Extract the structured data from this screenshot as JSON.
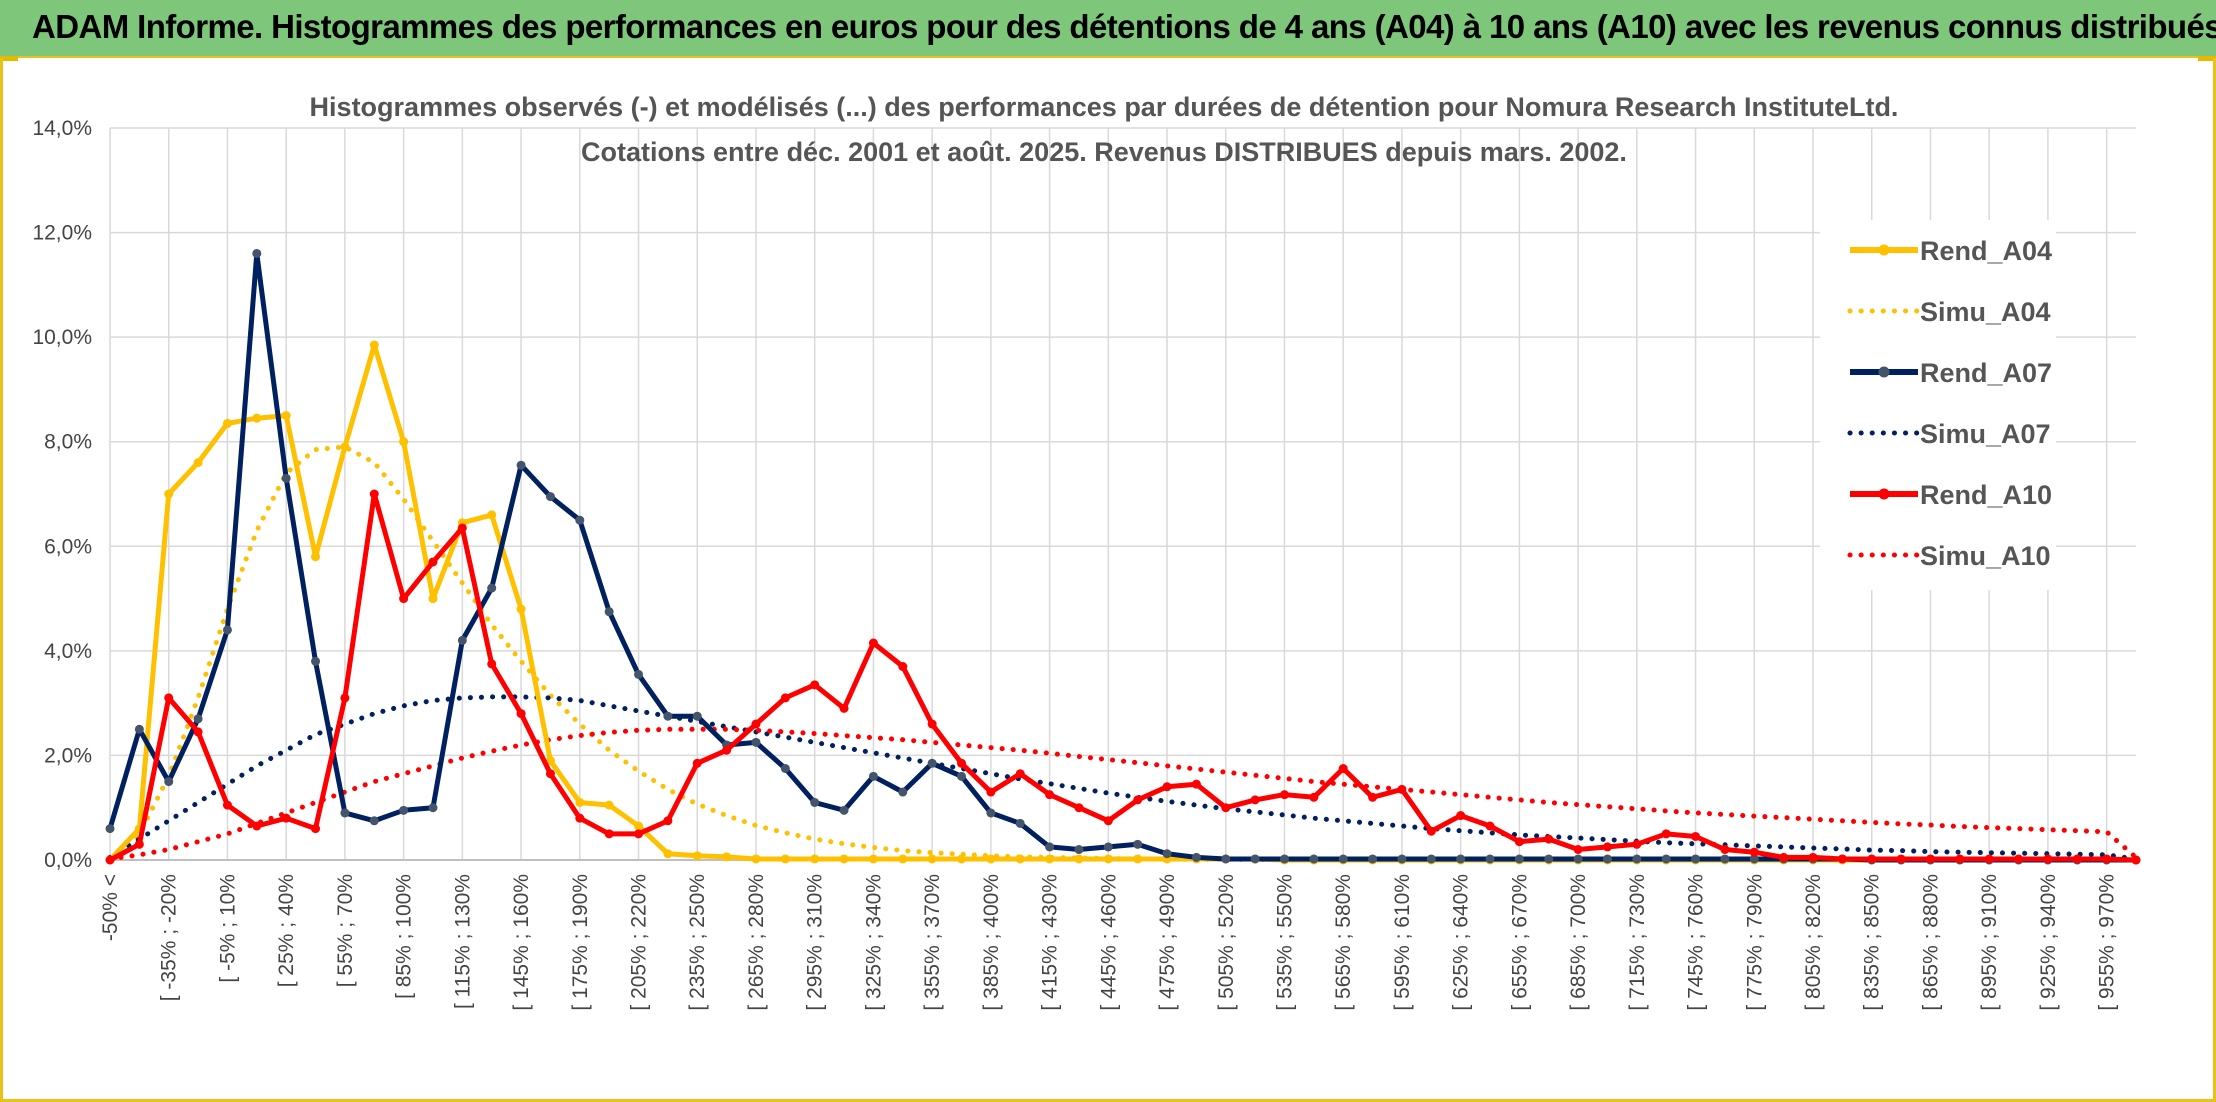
{
  "banner_title": "ADAM Informe. Histogrammes des performances en euros pour des détentions de 4 ans (A04) à 10 ans (A10) avec les revenus connus distribués",
  "chart_data": {
    "type": "line",
    "title": "Histogrammes observés (-) et modélisés (...) des performances par durées de détention pour Nomura Research InstituteLtd.",
    "subtitle": "Cotations entre déc. 2001 et août. 2025. Revenus DISTRIBUES depuis mars. 2002.",
    "xlabel": "",
    "ylabel": "",
    "ylim": [
      0,
      14
    ],
    "yticks": [
      "0,0%",
      "2,0%",
      "4,0%",
      "6,0%",
      "8,0%",
      "10,0%",
      "12,0%",
      "14,0%"
    ],
    "grid": true,
    "legend_position": "right",
    "x_labels_shown": [
      "-50% <",
      "[ -35% ; -20%",
      "[ -5% ; 10%",
      "[ 25% ; 40%",
      "[ 55% ; 70%",
      "[ 85% ; 100%",
      "[ 115% ; 130%",
      "[ 145% ; 160%",
      "[ 175% ; 190%",
      "[ 205% ; 220%",
      "[ 235% ; 250%",
      "[ 265% ; 280%",
      "[ 295% ; 310%",
      "[ 325% ; 340%",
      "[ 355% ; 370%",
      "[ 385% ; 400%",
      "[ 415% ; 430%",
      "[ 445% ; 460%",
      "[ 475% ; 490%",
      "[ 505% ; 520%",
      "[ 535% ; 550%",
      "[ 565% ; 580%",
      "[ 595% ; 610%",
      "[ 625% ; 640%",
      "[ 655% ; 670%",
      "[ 685% ; 700%",
      "[ 715% ; 730%",
      "[ 745% ; 760%",
      "[ 775% ; 790%",
      "[ 805% ; 820%",
      "[ 835% ; 850%",
      "[ 865% ; 880%",
      "[ 895% ; 910%",
      "[ 925% ; 940%",
      "[ 955% ; 970%"
    ],
    "n_points": 70,
    "series": [
      {
        "name": "Rend_A04",
        "style": "solid",
        "color": "#ffc000",
        "values": [
          0,
          0.6,
          7.0,
          7.6,
          8.35,
          8.45,
          8.5,
          5.8,
          7.9,
          9.85,
          8.0,
          5.0,
          6.45,
          6.6,
          4.8,
          1.9,
          1.1,
          1.05,
          0.65,
          0.12,
          0.08,
          0.06,
          0.02,
          0.02,
          0.02,
          0.02,
          0.02,
          0.02,
          0.02,
          0.02,
          0.02,
          0.02,
          0.02,
          0.02,
          0.02,
          0.02,
          0.02,
          0.02,
          0.02,
          0.02,
          0,
          0,
          0,
          0,
          0,
          0,
          0,
          0,
          0,
          0,
          0,
          0,
          0,
          0,
          0,
          0,
          0,
          0,
          0,
          0,
          0,
          0,
          0,
          0,
          0,
          0,
          0,
          0,
          0,
          0
        ]
      },
      {
        "name": "Simu_A04",
        "style": "dotted",
        "color": "#ffc000",
        "values": [
          0.05,
          0.5,
          1.6,
          3.1,
          4.8,
          6.3,
          7.4,
          7.85,
          7.9,
          7.6,
          6.9,
          6.1,
          5.3,
          4.5,
          3.8,
          3.15,
          2.6,
          2.1,
          1.7,
          1.35,
          1.07,
          0.85,
          0.66,
          0.52,
          0.4,
          0.31,
          0.24,
          0.18,
          0.14,
          0.11,
          0.08,
          0.06,
          0.05,
          0.04,
          0.03,
          0.02,
          0.015,
          0.01,
          0.01,
          0.005,
          0,
          0,
          0,
          0,
          0,
          0,
          0,
          0,
          0,
          0,
          0,
          0,
          0,
          0,
          0,
          0,
          0,
          0,
          0,
          0,
          0,
          0,
          0,
          0,
          0,
          0,
          0,
          0,
          0,
          0
        ]
      },
      {
        "name": "Rend_A07",
        "style": "solid",
        "color": "#002060",
        "values": [
          0.6,
          2.5,
          1.5,
          2.7,
          4.4,
          11.6,
          7.3,
          3.8,
          0.9,
          0.75,
          0.95,
          1.0,
          4.2,
          5.2,
          7.55,
          6.95,
          6.5,
          4.75,
          3.55,
          2.75,
          2.75,
          2.2,
          2.25,
          1.75,
          1.1,
          0.95,
          1.6,
          1.3,
          1.85,
          1.6,
          0.9,
          0.7,
          0.25,
          0.2,
          0.25,
          0.3,
          0.12,
          0.05,
          0.02,
          0.02,
          0.02,
          0.02,
          0.02,
          0.02,
          0.02,
          0.02,
          0.02,
          0.02,
          0.02,
          0.02,
          0.02,
          0.02,
          0.02,
          0.02,
          0.02,
          0.02,
          0.02,
          0.02,
          0.02,
          0.02,
          0,
          0,
          0,
          0,
          0,
          0,
          0,
          0,
          0,
          0
        ]
      },
      {
        "name": "Simu_A07",
        "style": "dotted",
        "color": "#002060",
        "values": [
          0.05,
          0.4,
          0.75,
          1.1,
          1.45,
          1.8,
          2.1,
          2.4,
          2.6,
          2.8,
          2.95,
          3.05,
          3.1,
          3.12,
          3.12,
          3.1,
          3.05,
          2.95,
          2.85,
          2.75,
          2.65,
          2.55,
          2.45,
          2.35,
          2.25,
          2.15,
          2.05,
          1.95,
          1.85,
          1.75,
          1.65,
          1.55,
          1.46,
          1.37,
          1.28,
          1.2,
          1.12,
          1.05,
          0.98,
          0.92,
          0.86,
          0.8,
          0.75,
          0.7,
          0.65,
          0.6,
          0.56,
          0.52,
          0.48,
          0.45,
          0.42,
          0.39,
          0.36,
          0.33,
          0.31,
          0.29,
          0.27,
          0.25,
          0.23,
          0.21,
          0.19,
          0.18,
          0.16,
          0.15,
          0.14,
          0.13,
          0.12,
          0.11,
          0.1,
          0.02
        ]
      },
      {
        "name": "Rend_A10",
        "style": "solid",
        "color": "#ff0000",
        "values": [
          0,
          0.3,
          3.1,
          2.45,
          1.05,
          0.65,
          0.8,
          0.6,
          3.1,
          7.0,
          5.0,
          5.7,
          6.35,
          3.75,
          2.8,
          1.65,
          0.8,
          0.5,
          0.5,
          0.75,
          1.85,
          2.1,
          2.6,
          3.1,
          3.35,
          2.9,
          4.15,
          3.7,
          2.6,
          1.85,
          1.3,
          1.65,
          1.25,
          1.0,
          0.75,
          1.15,
          1.4,
          1.45,
          1.0,
          1.15,
          1.25,
          1.2,
          1.75,
          1.2,
          1.35,
          0.55,
          0.85,
          0.65,
          0.35,
          0.4,
          0.2,
          0.25,
          0.3,
          0.5,
          0.45,
          0.2,
          0.15,
          0.05,
          0.05,
          0.02,
          0.02,
          0.02,
          0.02,
          0.02,
          0.02,
          0.02,
          0.02,
          0.02,
          0.02,
          0
        ]
      },
      {
        "name": "Simu_A10",
        "style": "dotted",
        "color": "#ff0000",
        "values": [
          0.02,
          0.1,
          0.2,
          0.35,
          0.5,
          0.7,
          0.9,
          1.1,
          1.3,
          1.5,
          1.65,
          1.8,
          1.95,
          2.08,
          2.2,
          2.3,
          2.38,
          2.44,
          2.48,
          2.5,
          2.5,
          2.5,
          2.48,
          2.45,
          2.42,
          2.38,
          2.34,
          2.3,
          2.25,
          2.2,
          2.15,
          2.1,
          2.04,
          1.98,
          1.92,
          1.86,
          1.8,
          1.74,
          1.68,
          1.62,
          1.56,
          1.5,
          1.45,
          1.4,
          1.35,
          1.3,
          1.25,
          1.2,
          1.15,
          1.1,
          1.06,
          1.02,
          0.98,
          0.94,
          0.9,
          0.87,
          0.84,
          0.81,
          0.78,
          0.75,
          0.72,
          0.69,
          0.67,
          0.64,
          0.62,
          0.6,
          0.58,
          0.56,
          0.54,
          0.05
        ]
      }
    ]
  }
}
